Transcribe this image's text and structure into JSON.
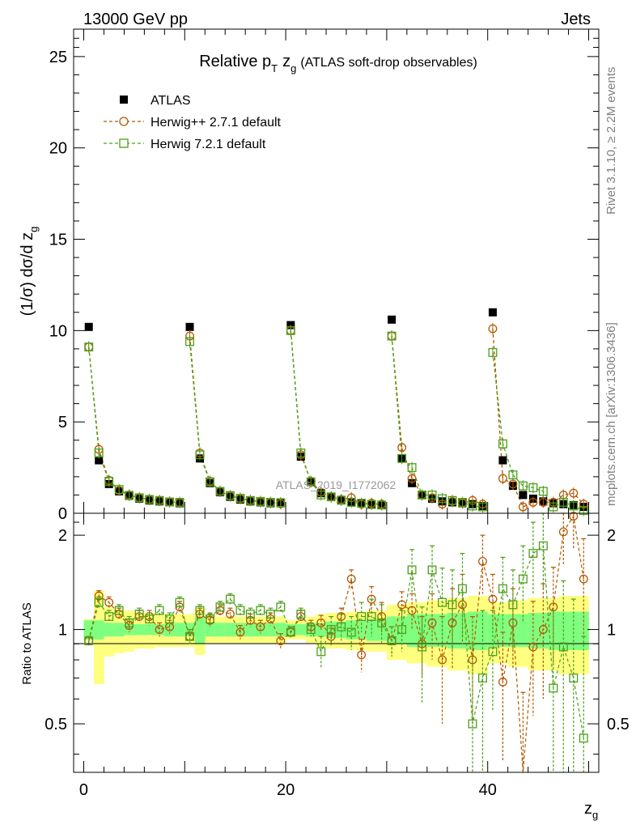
{
  "header": {
    "left": "13000 GeV pp",
    "right": "Jets"
  },
  "side": {
    "rivet": "Rivet 3.1.10, ≥ 2.2M events",
    "mcplots": "mcplots.cern.ch [arXiv:1306.3436]"
  },
  "colors": {
    "data": "#000000",
    "herwigpp": "#b35900",
    "herwig7": "#4c9f1a",
    "band_inner": "#7fff7f",
    "band_outer": "#ffff7f",
    "watermark": "#999999"
  },
  "chart_data": [
    {
      "type": "scatter",
      "title_main": "Relative p",
      "title_sub_T": "T",
      "title_zg": "z",
      "title_sub_g": "g",
      "title_rest": "(ATLAS soft-drop observables)",
      "ylabel_main": "(1/σ) dσ/d z",
      "ylabel_sub": "g",
      "watermark": "ATLAS_2019_I1772062",
      "xlim": [
        -1,
        51
      ],
      "ylim": [
        0,
        26.5
      ],
      "yticks": [
        0,
        5,
        10,
        15,
        20,
        25
      ],
      "yticklabels": [
        "0",
        "5",
        "10",
        "15",
        "20",
        "25"
      ],
      "legend_position": "top-left",
      "series": [
        {
          "name": "ATLAS",
          "style": "data",
          "x": [
            0.5,
            1.5,
            2.5,
            3.5,
            4.5,
            5.5,
            6.5,
            7.5,
            8.5,
            9.5,
            10.5,
            11.5,
            12.5,
            13.5,
            14.5,
            15.5,
            16.5,
            17.5,
            18.5,
            19.5,
            20.5,
            21.5,
            22.5,
            23.5,
            24.5,
            25.5,
            26.5,
            27.5,
            28.5,
            29.5,
            30.5,
            31.5,
            32.5,
            33.5,
            34.5,
            35.5,
            36.5,
            37.5,
            38.5,
            39.5,
            40.5,
            41.5,
            42.5,
            43.5,
            44.5,
            45.5,
            46.5,
            47.5,
            48.5,
            49.5
          ],
          "values": [
            10.2,
            2.9,
            1.6,
            1.2,
            0.95,
            0.8,
            0.7,
            0.65,
            0.6,
            0.55,
            10.2,
            3.0,
            1.65,
            1.15,
            0.9,
            0.75,
            0.65,
            0.6,
            0.55,
            0.55,
            10.3,
            3.1,
            1.7,
            1.1,
            0.9,
            0.7,
            0.6,
            0.55,
            0.5,
            0.45,
            10.6,
            3.0,
            1.65,
            1.0,
            0.8,
            0.65,
            0.6,
            0.55,
            0.5,
            0.4,
            11.0,
            2.9,
            1.5,
            1.0,
            0.8,
            0.65,
            0.55,
            0.5,
            0.45,
            0.35
          ]
        },
        {
          "name": "Herwig++ 2.7.1 default",
          "style": "circle-dashed",
          "x": [
            0.5,
            1.5,
            2.5,
            3.5,
            4.5,
            5.5,
            6.5,
            7.5,
            8.5,
            9.5,
            10.5,
            11.5,
            12.5,
            13.5,
            14.5,
            15.5,
            16.5,
            17.5,
            18.5,
            19.5,
            20.5,
            21.5,
            22.5,
            23.5,
            24.5,
            25.5,
            26.5,
            27.5,
            28.5,
            29.5,
            30.5,
            31.5,
            32.5,
            33.5,
            34.5,
            35.5,
            36.5,
            37.5,
            38.5,
            39.5,
            40.5,
            41.5,
            42.5,
            43.5,
            44.5,
            45.5,
            46.5,
            47.5,
            48.5,
            49.5
          ],
          "values": [
            9.1,
            3.5,
            1.8,
            1.25,
            1.0,
            0.85,
            0.75,
            0.7,
            0.62,
            0.58,
            9.7,
            3.3,
            1.75,
            1.2,
            0.95,
            0.8,
            0.7,
            0.62,
            0.58,
            0.52,
            10.0,
            3.2,
            1.75,
            1.15,
            0.9,
            0.75,
            0.85,
            0.5,
            0.55,
            0.5,
            9.7,
            3.6,
            1.9,
            1.0,
            0.85,
            0.5,
            0.65,
            0.55,
            0.7,
            0.5,
            10.1,
            1.9,
            1.6,
            0.35,
            0.6,
            0.6,
            0.6,
            1.0,
            1.1,
            0.5
          ]
        },
        {
          "name": "Herwig 7.2.1 default",
          "style": "square-dashed",
          "x": [
            0.5,
            1.5,
            2.5,
            3.5,
            4.5,
            5.5,
            6.5,
            7.5,
            8.5,
            9.5,
            10.5,
            11.5,
            12.5,
            13.5,
            14.5,
            15.5,
            16.5,
            17.5,
            18.5,
            19.5,
            20.5,
            21.5,
            22.5,
            23.5,
            24.5,
            25.5,
            26.5,
            27.5,
            28.5,
            29.5,
            30.5,
            31.5,
            32.5,
            33.5,
            34.5,
            35.5,
            36.5,
            37.5,
            38.5,
            39.5,
            40.5,
            41.5,
            42.5,
            43.5,
            44.5,
            45.5,
            46.5,
            47.5,
            48.5,
            49.5
          ],
          "values": [
            9.1,
            3.3,
            1.75,
            1.3,
            0.98,
            0.85,
            0.76,
            0.7,
            0.62,
            0.6,
            9.4,
            3.2,
            1.72,
            1.2,
            0.97,
            0.82,
            0.7,
            0.65,
            0.6,
            0.58,
            10.0,
            3.3,
            1.72,
            1.0,
            0.9,
            0.72,
            0.6,
            0.55,
            0.48,
            0.45,
            9.7,
            3.0,
            2.5,
            1.0,
            1.0,
            0.8,
            0.7,
            0.6,
            0.4,
            0.35,
            8.8,
            3.8,
            2.1,
            1.5,
            1.4,
            1.2,
            0.35,
            0.6,
            0.4,
            0.15
          ]
        }
      ]
    },
    {
      "type": "scatter",
      "title": "",
      "ylabel": "Ratio to ATLAS",
      "xlabel_main": "z",
      "xlabel_sub": "g",
      "xlim": [
        -1,
        51
      ],
      "ylim": [
        0.35,
        2.35
      ],
      "yticks": [
        0.5,
        1,
        2
      ],
      "yticklabels": [
        "0.5",
        "1",
        "2"
      ],
      "xticks": [
        0,
        20,
        40
      ],
      "xticklabels": [
        "0",
        "20",
        "40"
      ],
      "x": [
        0.5,
        1.5,
        2.5,
        3.5,
        4.5,
        5.5,
        6.5,
        7.5,
        8.5,
        9.5,
        10.5,
        11.5,
        12.5,
        13.5,
        14.5,
        15.5,
        16.5,
        17.5,
        18.5,
        19.5,
        20.5,
        21.5,
        22.5,
        23.5,
        24.5,
        25.5,
        26.5,
        27.5,
        28.5,
        29.5,
        30.5,
        31.5,
        32.5,
        33.5,
        34.5,
        35.5,
        36.5,
        37.5,
        38.5,
        39.5,
        40.5,
        41.5,
        42.5,
        43.5,
        44.5,
        45.5,
        46.5,
        47.5,
        48.5,
        49.5
      ],
      "band_inner": [
        0.07,
        0.07,
        0.05,
        0.05,
        0.04,
        0.04,
        0.04,
        0.04,
        0.05,
        0.05,
        0.05,
        0.1,
        0.05,
        0.05,
        0.05,
        0.05,
        0.05,
        0.05,
        0.05,
        0.05,
        0.04,
        0.04,
        0.05,
        0.05,
        0.06,
        0.06,
        0.07,
        0.07,
        0.08,
        0.08,
        0.1,
        0.1,
        0.12,
        0.12,
        0.12,
        0.12,
        0.13,
        0.13,
        0.14,
        0.14,
        0.12,
        0.12,
        0.12,
        0.12,
        0.13,
        0.13,
        0.14,
        0.14,
        0.14,
        0.14
      ],
      "band_outer": [
        0.08,
        0.33,
        0.18,
        0.16,
        0.15,
        0.13,
        0.13,
        0.12,
        0.12,
        0.12,
        0.12,
        0.17,
        0.1,
        0.1,
        0.1,
        0.1,
        0.1,
        0.1,
        0.1,
        0.1,
        0.07,
        0.07,
        0.1,
        0.12,
        0.13,
        0.13,
        0.14,
        0.14,
        0.15,
        0.15,
        0.2,
        0.2,
        0.22,
        0.22,
        0.24,
        0.24,
        0.26,
        0.26,
        0.28,
        0.28,
        0.22,
        0.22,
        0.24,
        0.24,
        0.26,
        0.26,
        0.26,
        0.28,
        0.28,
        0.28
      ],
      "series": [
        {
          "name": "Herwig++ 2.7.1 default",
          "style": "circle-dashed",
          "values": [
            0.92,
            1.28,
            1.22,
            1.12,
            1.03,
            1.1,
            1.1,
            1.0,
            1.02,
            1.18,
            0.95,
            1.12,
            1.07,
            1.15,
            1.12,
            0.98,
            1.07,
            1.02,
            1.08,
            0.92,
            0.98,
            1.1,
            1.02,
            1.05,
            0.95,
            1.1,
            1.45,
            0.83,
            1.25,
            1.1,
            0.92,
            1.2,
            1.15,
            0.9,
            1.05,
            0.8,
            1.05,
            1.2,
            0.8,
            1.65,
            1.25,
            0.68,
            1.05,
            0.33,
            0.88,
            1.0,
            1.18,
            2.05,
            2.3,
            1.45
          ],
          "errors": [
            0.03,
            0.05,
            0.05,
            0.05,
            0.05,
            0.05,
            0.05,
            0.05,
            0.05,
            0.05,
            0.05,
            0.05,
            0.05,
            0.05,
            0.05,
            0.05,
            0.05,
            0.05,
            0.05,
            0.05,
            0.04,
            0.05,
            0.05,
            0.06,
            0.06,
            0.07,
            0.1,
            0.1,
            0.12,
            0.12,
            0.1,
            0.12,
            0.15,
            0.2,
            0.25,
            0.3,
            0.3,
            0.3,
            0.3,
            0.35,
            0.25,
            0.3,
            0.3,
            0.3,
            0.35,
            0.4,
            0.4,
            0.45,
            0.5,
            0.5
          ]
        },
        {
          "name": "Herwig 7.2.1 default",
          "style": "square-dashed",
          "values": [
            0.92,
            1.22,
            1.1,
            1.15,
            1.05,
            1.12,
            1.08,
            1.15,
            1.08,
            1.22,
            0.95,
            1.15,
            1.08,
            1.18,
            1.25,
            1.15,
            1.12,
            1.15,
            1.12,
            1.18,
            0.98,
            1.12,
            1.0,
            0.85,
            1.0,
            1.02,
            0.98,
            1.1,
            1.1,
            1.05,
            0.92,
            1.0,
            1.55,
            0.88,
            1.55,
            1.22,
            1.2,
            1.35,
            0.5,
            0.7,
            0.85,
            1.35,
            1.2,
            1.45,
            1.75,
            1.85,
            0.65,
            0.88,
            0.7,
            0.45
          ],
          "errors": [
            0.03,
            0.05,
            0.05,
            0.05,
            0.05,
            0.05,
            0.05,
            0.05,
            0.05,
            0.05,
            0.05,
            0.05,
            0.05,
            0.05,
            0.05,
            0.05,
            0.05,
            0.05,
            0.05,
            0.05,
            0.04,
            0.05,
            0.05,
            0.1,
            0.1,
            0.1,
            0.12,
            0.12,
            0.15,
            0.15,
            0.1,
            0.15,
            0.25,
            0.3,
            0.3,
            0.35,
            0.35,
            0.4,
            0.4,
            0.45,
            0.3,
            0.35,
            0.35,
            0.4,
            0.45,
            0.5,
            0.5,
            0.55,
            0.55,
            0.5
          ]
        }
      ]
    }
  ]
}
